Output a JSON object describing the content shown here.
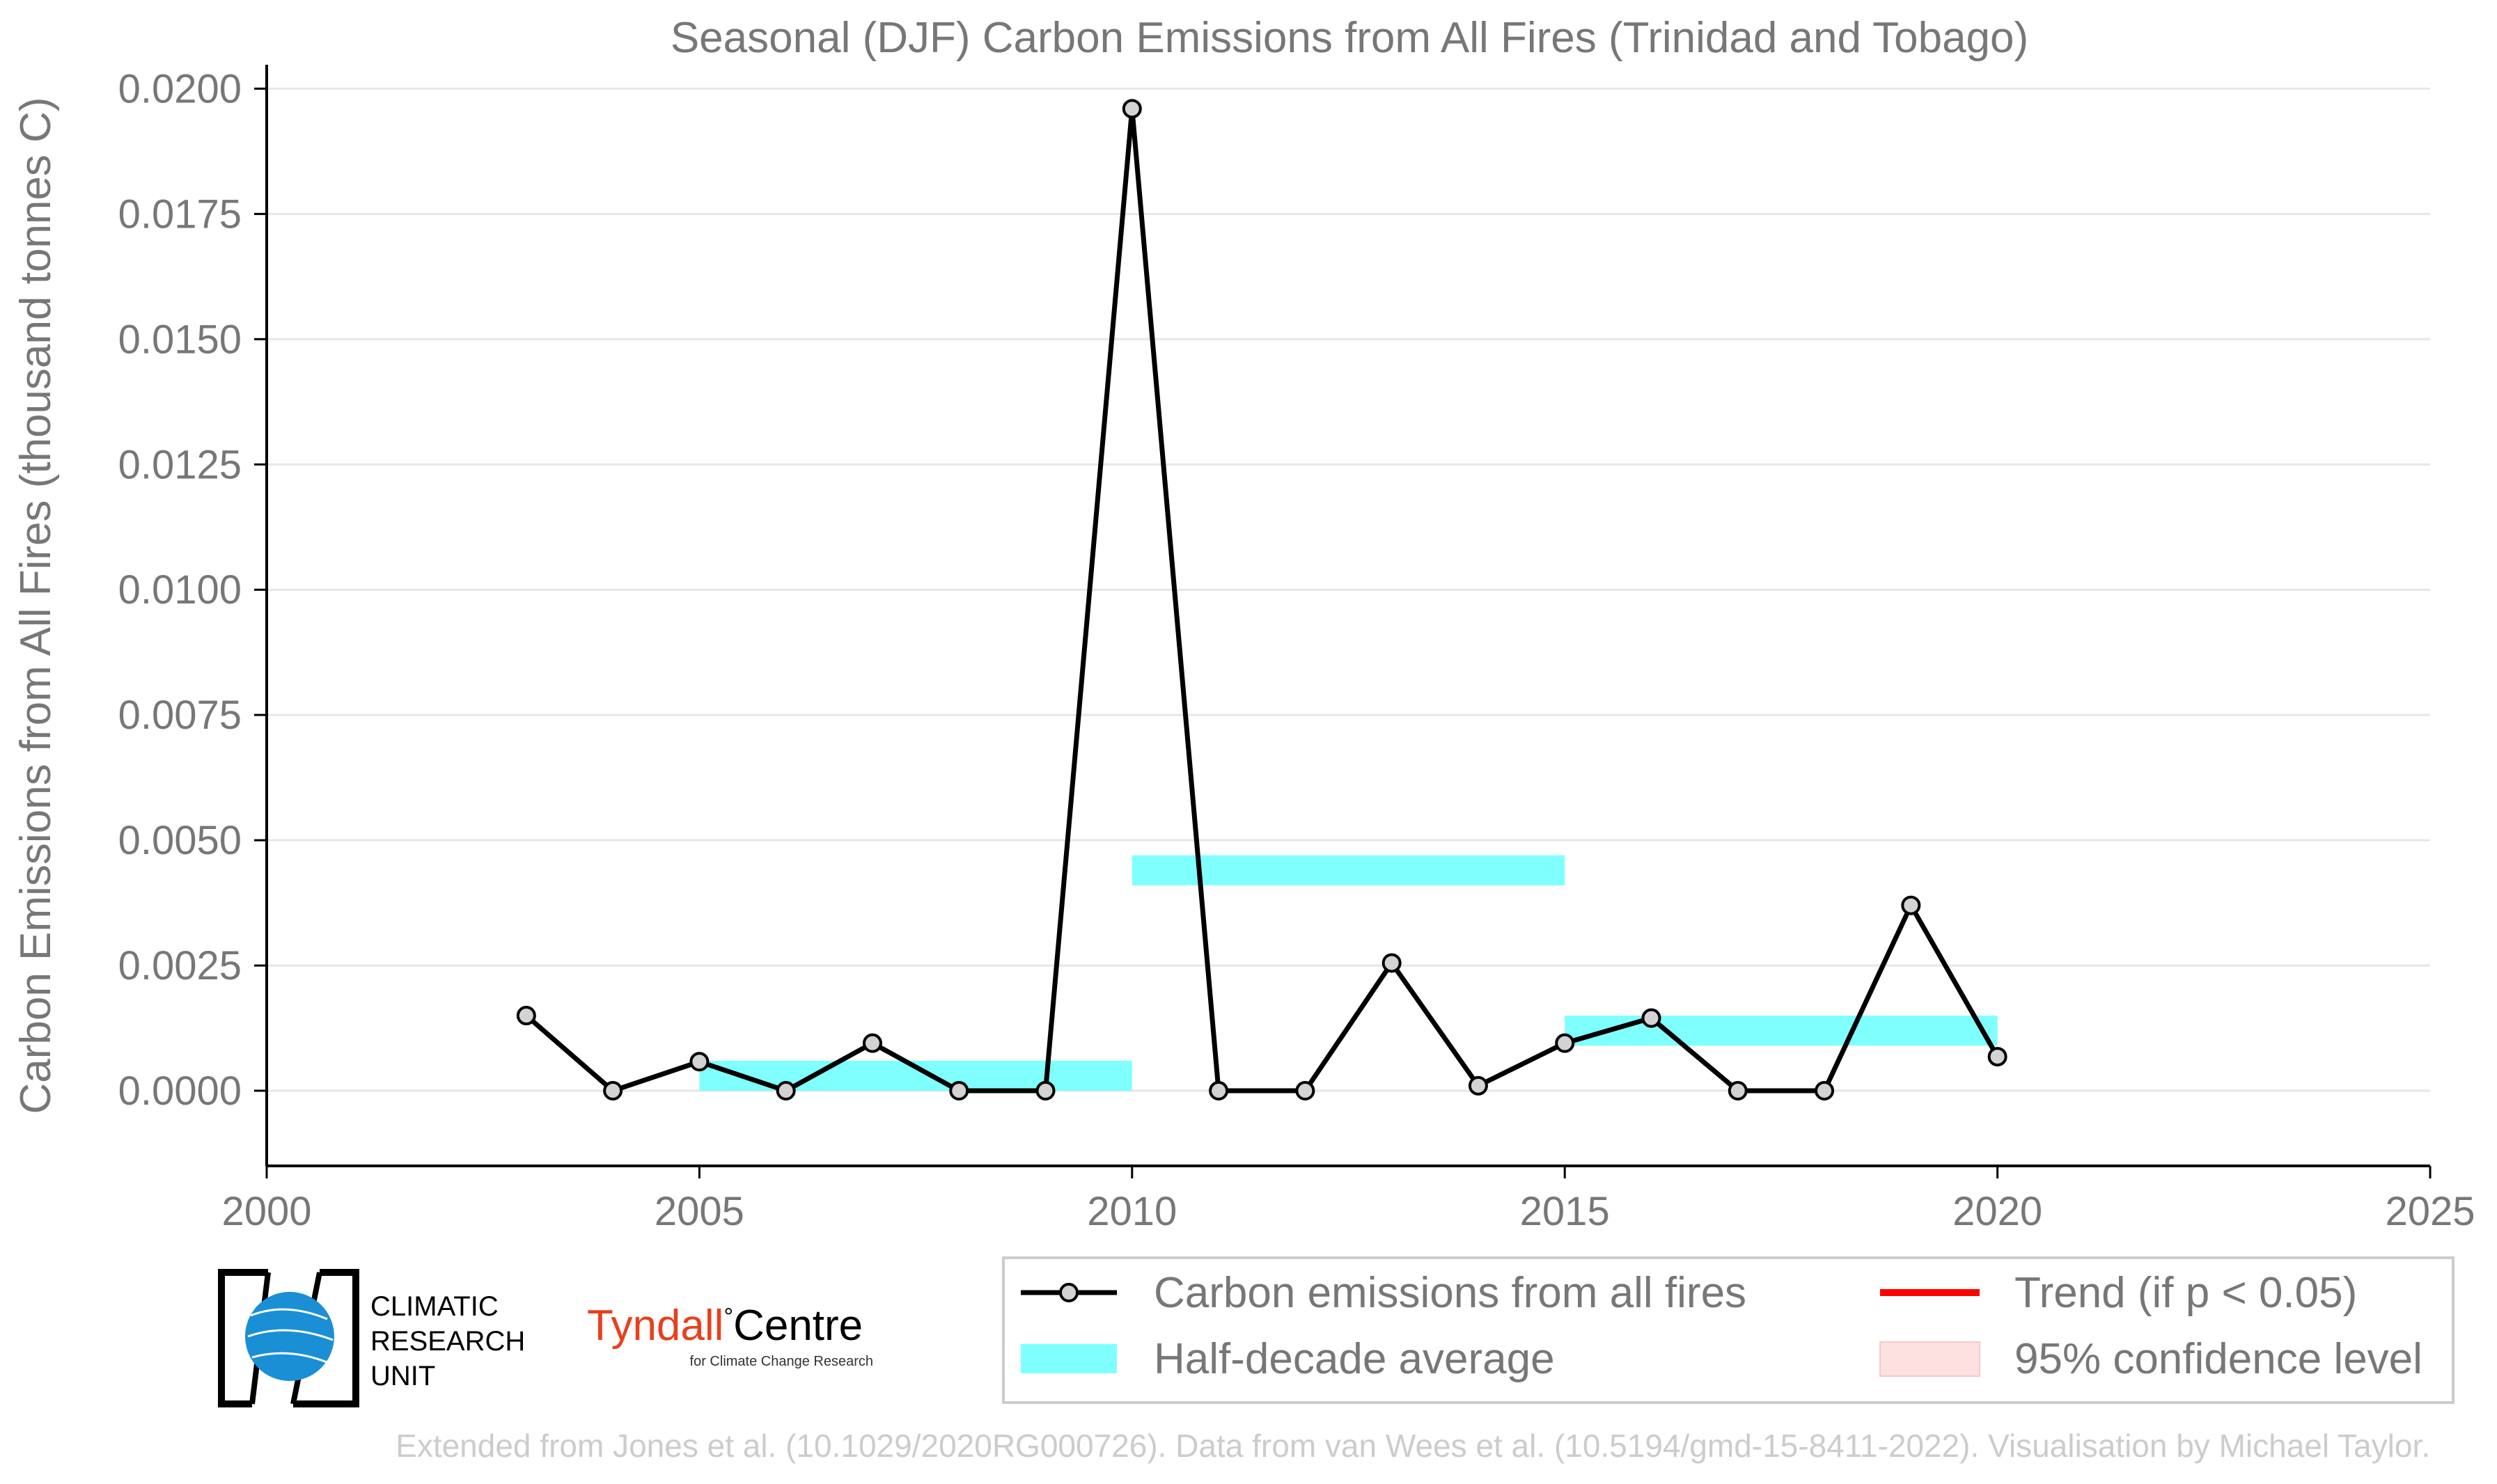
{
  "chart_data": {
    "type": "line",
    "title": "Seasonal (DJF) Carbon Emissions from All Fires (Trinidad and Tobago)",
    "xlabel": "",
    "ylabel": "Carbon Emissions from All Fires (thousand tonnes C)",
    "xlim": [
      2000,
      2025
    ],
    "ylim": [
      -0.0015,
      0.0202
    ],
    "x_ticks": [
      2000,
      2005,
      2010,
      2015,
      2020,
      2025
    ],
    "x_tick_labels": [
      "2000",
      "2005",
      "2010",
      "2015",
      "2020",
      "2025"
    ],
    "y_ticks": [
      0,
      0.0025,
      0.005,
      0.0075,
      0.01,
      0.0125,
      0.015,
      0.0175,
      0.02
    ],
    "y_tick_labels": [
      "0.0000",
      "0.0025",
      "0.0050",
      "0.0075",
      "0.0100",
      "0.0125",
      "0.0150",
      "0.0175",
      "0.0200"
    ],
    "grid": "horizontal",
    "series": [
      {
        "name": "Carbon emissions from all fires",
        "color": "#000000",
        "marker_fill": "#d3d3d3",
        "x": [
          2003,
          2004,
          2005,
          2006,
          2007,
          2008,
          2009,
          2010,
          2011,
          2012,
          2013,
          2014,
          2015,
          2016,
          2017,
          2018,
          2019,
          2020
        ],
        "y": [
          0.0015,
          0.0,
          0.00058,
          0.0,
          0.00095,
          0.0,
          0.0,
          0.0196,
          0.0,
          0.0,
          0.00255,
          0.0001,
          0.00095,
          0.00145,
          0.0,
          0.0,
          0.0037,
          0.00068
        ]
      }
    ],
    "half_decade_average": {
      "name": "Half-decade average",
      "color": "#80ffff",
      "segments": [
        {
          "x_start": 2005,
          "x_end": 2010,
          "value": 0.0003
        },
        {
          "x_start": 2010,
          "x_end": 2015,
          "value": 0.0044
        },
        {
          "x_start": 2015,
          "x_end": 2020,
          "value": 0.0012
        }
      ]
    },
    "legend": {
      "position": "below-right",
      "entries": [
        {
          "label": "Carbon emissions from all fires",
          "style": "line-marker",
          "color": "#000000"
        },
        {
          "label": "Trend (if p < 0.05)",
          "style": "line",
          "color": "#ff0000"
        },
        {
          "label": "Half-decade average",
          "style": "band",
          "color": "#80ffff"
        },
        {
          "label": "95% confidence level",
          "style": "band",
          "color": "#fde0e0"
        }
      ]
    }
  },
  "logos": {
    "cru_lines": [
      "CLIMATIC",
      "RESEARCH",
      "UNIT"
    ],
    "tyndall_main": "Tyndall",
    "tyndall_deg": "°",
    "tyndall_centre": "Centre",
    "tyndall_sub": "for Climate Change Research"
  },
  "footer": "Extended from Jones et al. (10.1029/2020RG000726). Data from van Wees et al. (10.5194/gmd-15-8411-2022). Visualisation by Michael Taylor."
}
